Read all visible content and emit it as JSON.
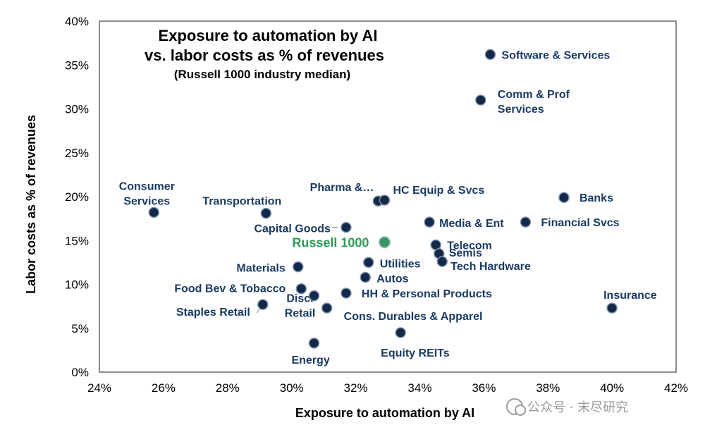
{
  "chart_data": {
    "type": "scatter",
    "title": "Exposure to automation by AI",
    "title_line2": "vs. labor costs as % of revenues",
    "subtitle": "(Russell 1000 industry median)",
    "xlabel": "Exposure to automation by AI",
    "ylabel": "Labor costs as % of revenues",
    "xlim": [
      24,
      42
    ],
    "ylim": [
      0,
      40
    ],
    "x_ticks": [
      "24%",
      "26%",
      "28%",
      "30%",
      "32%",
      "34%",
      "36%",
      "38%",
      "40%",
      "42%"
    ],
    "y_ticks": [
      "0%",
      "5%",
      "10%",
      "15%",
      "20%",
      "25%",
      "30%",
      "35%",
      "40%"
    ],
    "points": [
      {
        "label": [
          "Software & Services"
        ],
        "x": 36.2,
        "y": 36.2
      },
      {
        "label": [
          "Comm & Prof",
          "Services"
        ],
        "x": 35.9,
        "y": 31.0
      },
      {
        "label": [
          "Banks"
        ],
        "x": 38.5,
        "y": 19.9
      },
      {
        "label": [
          "Financial Svcs"
        ],
        "x": 37.3,
        "y": 17.1
      },
      {
        "label": [
          "Consumer",
          "Services"
        ],
        "x": 25.7,
        "y": 18.2
      },
      {
        "label": [
          "Transportation"
        ],
        "x": 29.2,
        "y": 18.1
      },
      {
        "label": [
          "Pharma &…"
        ],
        "x": 32.7,
        "y": 19.5
      },
      {
        "label": [
          "HC Equip & Svcs"
        ],
        "x": 32.9,
        "y": 19.6
      },
      {
        "label": [
          "Capital Goods"
        ],
        "x": 31.7,
        "y": 16.5
      },
      {
        "label": [
          "Media & Ent"
        ],
        "x": 34.3,
        "y": 17.1
      },
      {
        "label": [
          "Russell 1000"
        ],
        "x": 32.9,
        "y": 14.8,
        "highlight": true
      },
      {
        "label": [
          "Telecom"
        ],
        "x": 34.5,
        "y": 14.5
      },
      {
        "label": [
          "Semis"
        ],
        "x": 34.6,
        "y": 13.5
      },
      {
        "label": [
          "Tech Hardware"
        ],
        "x": 34.7,
        "y": 12.6
      },
      {
        "label": [
          "Utilities"
        ],
        "x": 32.4,
        "y": 12.5
      },
      {
        "label": [
          "Materials"
        ],
        "x": 30.2,
        "y": 12.0
      },
      {
        "label": [
          "Autos"
        ],
        "x": 32.3,
        "y": 10.8
      },
      {
        "label": [
          "HH & Personal Products"
        ],
        "x": 31.7,
        "y": 9.0
      },
      {
        "label": [
          "Food Bev & Tobacco"
        ],
        "x": 30.3,
        "y": 9.5
      },
      {
        "label": [
          "Disc.",
          "Retail"
        ],
        "x": 30.7,
        "y": 8.7
      },
      {
        "label": [
          "Staples Retail"
        ],
        "x": 29.1,
        "y": 7.7
      },
      {
        "label": [
          "Cons. Durables & Apparel"
        ],
        "x": 31.1,
        "y": 7.3
      },
      {
        "label": [
          "Insurance"
        ],
        "x": 40.0,
        "y": 7.3
      },
      {
        "label": [
          "Equity REITs"
        ],
        "x": 33.4,
        "y": 4.5
      },
      {
        "label": [
          "Energy"
        ],
        "x": 30.7,
        "y": 3.3
      }
    ]
  },
  "watermark": "公众号 · 末尽研究",
  "colors": {
    "marker": "#14284a",
    "marker_highlight": "#2e9a55",
    "label": "#1a3a63",
    "frame": "#8c8c8c"
  }
}
